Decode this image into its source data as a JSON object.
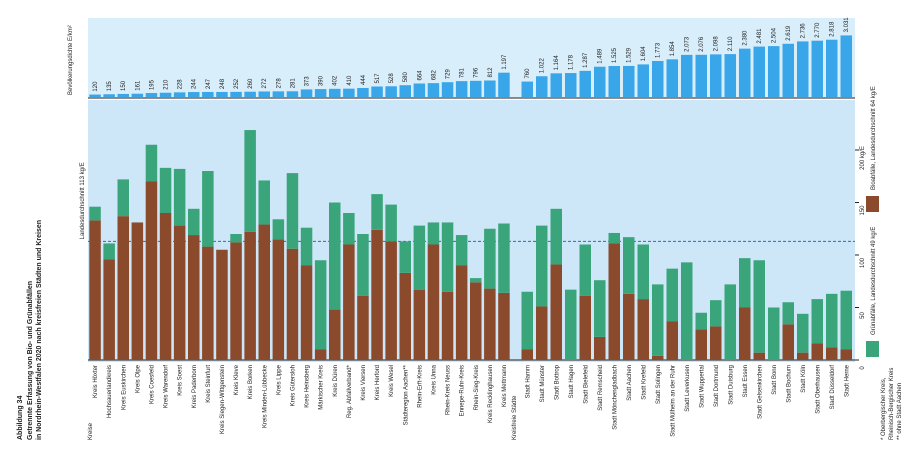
{
  "caption": {
    "figure": "Abbildung 34",
    "title": "Getrennte Erfassung von Bio- und Grünabfällen",
    "subtitle": "in Nordrhein-Westfalen 2020 nach kreisfreien Städten und Kreisen"
  },
  "chart_data": [
    {
      "type": "bar",
      "y_label": "Bevölkerungsdichte E/km²",
      "color": "#39a6ea",
      "ylim": [
        0,
        3100
      ],
      "values": [
        120,
        135,
        150,
        161,
        195,
        210,
        228,
        244,
        247,
        248,
        252,
        260,
        272,
        278,
        281,
        373,
        390,
        402,
        410,
        444,
        517,
        528,
        580,
        664,
        682,
        729,
        781,
        796,
        812,
        1197,
        760,
        1022,
        1164,
        1178,
        1287,
        1489,
        1525,
        1529,
        1604,
        1773,
        1854,
        2073,
        2076,
        2098,
        2110,
        2380,
        2481,
        2504,
        2619,
        2736,
        2770,
        2818,
        3031
      ],
      "value_labels": [
        "120",
        "135",
        "150",
        "161",
        "195",
        "210",
        "228",
        "244",
        "247",
        "248",
        "252",
        "260",
        "272",
        "278",
        "281",
        "373",
        "390",
        "402",
        "410",
        "444",
        "517",
        "528",
        "580",
        "664",
        "682",
        "729",
        "781",
        "796",
        "812",
        "1.197",
        "760",
        "1.022",
        "1.164",
        "1.178",
        "1.287",
        "1.489",
        "1.525",
        "1.529",
        "1.604",
        "1.773",
        "1.854",
        "2.073",
        "2.076",
        "2.098",
        "2.110",
        "2.380",
        "2.481",
        "2.504",
        "2.619",
        "2.736",
        "2.770",
        "2.818",
        "3.031"
      ]
    },
    {
      "type": "stacked_bar",
      "group_labels": [
        "Kreise",
        "Kreisfreie Städte"
      ],
      "categories": [
        "Kreis Höxter",
        "Hochsauerlandkreis",
        "Kreis Euskirchen",
        "Kreis Olpe",
        "Kreis Coesfeld",
        "Kreis Warendorf",
        "Kreis Soest",
        "Kreis Paderborn",
        "Kreis Steinfurt",
        "Kreis Siegen-Wittgenstein",
        "Kreis Kleve",
        "Kreis Borken",
        "Kreis Minden-Lübbecke",
        "Kreis Lippe",
        "Kreis Gütersloh",
        "Kreis Heinsberg",
        "Märkischer Kreis",
        "Kreis Düren",
        "Reg. Abfallverband*",
        "Kreis Viersen",
        "Kreis Herford",
        "Kreis Wesel",
        "Städteregion Aachen**",
        "Rhein-Erft-Kreis",
        "Kreis Unna",
        "Rhein-Kreis Neuss",
        "Ennepe-Ruhr-Kreis",
        "Rhein-Sieg-Kreis",
        "Kreis Recklinghausen",
        "Kreis Mettmann",
        "Stadt Hamm",
        "Stadt Münster",
        "Stadt Bottrop",
        "Stadt Hagen",
        "Stadt Bielefeld",
        "Stadt Remscheid",
        "Stadt Mönchengladbach",
        "Stadt Aachen",
        "Stadt Krefeld",
        "Stadt Solingen",
        "Stadt Mülheim an der Ruhr",
        "Stadt Leverkusen",
        "Stadt Wuppertal",
        "Stadt Dortmund",
        "Stadt Duisburg",
        "Stadt Essen",
        "Stadt Gelsenkirchen",
        "Stadt Bonn",
        "Stadt Bochum",
        "Stadt Köln",
        "Stadt Oberhausen",
        "Stadt Düsseldorf",
        "Stadt Herne"
      ],
      "series": [
        {
          "name": "Bioabfälle, Landesdurchschnitt 64 kg/E",
          "color": "#8b4a2b",
          "values": [
            133,
            96,
            137,
            131,
            170,
            140,
            128,
            119,
            108,
            105,
            112,
            122,
            129,
            115,
            106,
            90,
            10,
            48,
            110,
            61,
            124,
            113,
            83,
            67,
            110,
            65,
            90,
            74,
            68,
            64,
            10,
            51,
            91,
            0,
            61,
            22,
            111,
            63,
            58,
            4,
            37,
            0,
            29,
            32,
            0,
            50,
            7,
            0,
            34,
            7,
            16,
            12,
            10
          ]
        },
        {
          "name": "Grünabfälle, Landesdurchschnitt 49 kg/E",
          "color": "#3aa57b",
          "values": [
            13,
            15,
            35,
            0,
            35,
            43,
            54,
            25,
            72,
            0,
            8,
            97,
            42,
            19,
            72,
            36,
            85,
            102,
            30,
            59,
            34,
            35,
            30,
            61,
            21,
            66,
            29,
            4,
            57,
            66,
            55,
            77,
            53,
            67,
            49,
            54,
            10,
            54,
            52,
            68,
            50,
            93,
            16,
            25,
            72,
            47,
            88,
            50,
            21,
            37,
            42,
            51,
            56
          ]
        }
      ],
      "average": {
        "value": 113,
        "label": "Landesdurchschnitt 113 kg/E"
      },
      "ylim": [
        0,
        240
      ],
      "yticks": [
        0,
        50,
        100,
        150,
        {
          "value": 200,
          "label": "200 kg/E"
        }
      ],
      "grid": false,
      "footnotes": [
        "* Oberbergischer Kreis,",
        "Rheinisch-Bergischer Kreis",
        "** ohne Stadt Aachen"
      ]
    }
  ]
}
